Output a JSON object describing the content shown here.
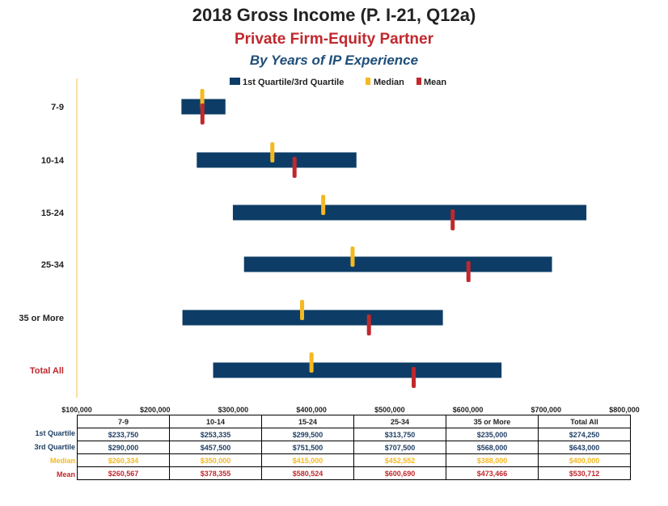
{
  "colors": {
    "quartile_bar": "#0d3d66",
    "median": "#f5b820",
    "mean": "#c0282d",
    "subtitle": "#c0282d",
    "subtitle2": "#1f4e79",
    "axis": "#f0c040",
    "total_label": "#c0282d"
  },
  "chart_data": {
    "type": "bar",
    "title": "2018 Gross Income (P. I-21, Q12a)",
    "subtitle": "Private Firm-Equity Partner",
    "subtitle2": "By Years of IP Experience",
    "categories": [
      "7-9",
      "10-14",
      "15-24",
      "25-34",
      "35 or More",
      "Total All"
    ],
    "xlim": [
      100000,
      800000
    ],
    "x_ticks": [
      "$100,000",
      "$200,000",
      "$300,000",
      "$400,000",
      "$500,000",
      "$600,000",
      "$700,000",
      "$800,000"
    ],
    "legend": [
      "1st Quartile/3rd Quartile",
      "Median",
      "Mean"
    ],
    "legend_position": "top",
    "series": [
      {
        "name": "1st Quartile",
        "values": [
          233750,
          253335,
          299500,
          313750,
          235000,
          274250
        ]
      },
      {
        "name": "3rd Quartile",
        "values": [
          290000,
          457500,
          751500,
          707500,
          568000,
          643000
        ]
      },
      {
        "name": "Median",
        "values": [
          260334,
          350000,
          415000,
          452552,
          388000,
          400000
        ]
      },
      {
        "name": "Mean",
        "values": [
          260567,
          378355,
          580524,
          600690,
          473466,
          530712
        ]
      }
    ]
  },
  "table": {
    "headers": [
      "7-9",
      "10-14",
      "15-24",
      "25-34",
      "35 or More",
      "Total All"
    ],
    "rows": [
      {
        "label": "1st Quartile",
        "cells": [
          "$233,750",
          "$253,335",
          "$299,500",
          "$313,750",
          "$235,000",
          "$274,250"
        ]
      },
      {
        "label": "3rd Quartile",
        "cells": [
          "$290,000",
          "$457,500",
          "$751,500",
          "$707,500",
          "$568,000",
          "$643,000"
        ]
      },
      {
        "label": "Median",
        "cells": [
          "$260,334",
          "$350,000",
          "$415,000",
          "$452,552",
          "$388,000",
          "$400,000"
        ]
      },
      {
        "label": "Mean",
        "cells": [
          "$260,567",
          "$378,355",
          "$580,524",
          "$600,690",
          "$473,466",
          "$530,712"
        ]
      }
    ]
  }
}
